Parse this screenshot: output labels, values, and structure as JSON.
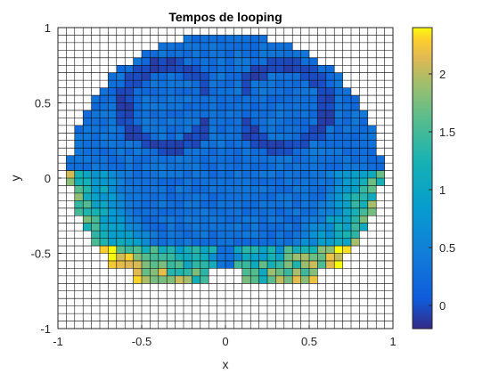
{
  "chart_data": {
    "type": "heatmap",
    "title": "Tempos de looping",
    "xlabel": "x",
    "ylabel": "y",
    "xlim": [
      -1,
      1
    ],
    "ylim": [
      -1,
      1
    ],
    "grid": "on",
    "grid_cells": 40,
    "colormap": "parula",
    "color_range": [
      -0.2,
      2.4
    ],
    "x_ticks": [
      -1,
      -0.5,
      0,
      0.5,
      1
    ],
    "x_tick_labels": [
      "-1",
      "-0.5",
      "0",
      "0.5",
      "1"
    ],
    "y_ticks": [
      -1,
      -0.5,
      0,
      0.5,
      1
    ],
    "y_tick_labels": [
      "-1",
      "-0.5",
      "0",
      "0.5",
      "1"
    ],
    "colorbar_ticks": [
      0,
      0.5,
      1,
      1.5,
      2
    ],
    "colorbar_tick_labels": [
      "0",
      "0.5",
      "1",
      "1.5",
      "2"
    ],
    "region_description": "Filled region inside a roughly circular boundary of radius ~0.95 centered at (0,0.05); values mostly 0.2-0.5 with dark arcs (~-0.1) forming two rings near (-0.35,0.5) and (0.35,0.5); higher values (0.8-2.2) along the lower and lower-side edges.",
    "samples": [
      {
        "x": -0.35,
        "y": 0.5,
        "value": -0.1
      },
      {
        "x": 0.35,
        "y": 0.5,
        "value": -0.1
      },
      {
        "x": 0.0,
        "y": 0.5,
        "value": 0.3
      },
      {
        "x": 0.0,
        "y": 0.0,
        "value": 0.3
      },
      {
        "x": -0.85,
        "y": -0.1,
        "value": 0.9
      },
      {
        "x": 0.85,
        "y": -0.1,
        "value": 1.0
      },
      {
        "x": -0.75,
        "y": -0.55,
        "value": 1.8
      },
      {
        "x": 0.75,
        "y": -0.5,
        "value": 1.9
      },
      {
        "x": -0.45,
        "y": -0.55,
        "value": 1.3
      },
      {
        "x": 0.45,
        "y": -0.55,
        "value": 1.2
      },
      {
        "x": 0.0,
        "y": -0.4,
        "value": 0.6
      }
    ]
  }
}
